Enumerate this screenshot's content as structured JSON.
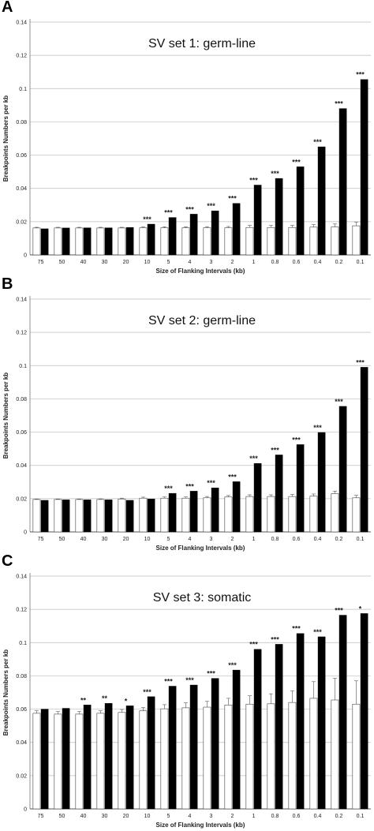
{
  "chart_data": [
    {
      "panel_label": "A",
      "type": "bar",
      "title": "SV set 1: germ-line",
      "xlabel": "Size of Flanking Intervals (kb)",
      "ylabel": "Breakpoints Numbers per kb",
      "ylim": [
        0,
        0.14
      ],
      "yticks": [
        "0",
        "0.02",
        "0.04",
        "0.06",
        "0.08",
        "0.1",
        "0.12",
        "0.14"
      ],
      "grid": true,
      "categories": [
        "75",
        "50",
        "40",
        "30",
        "20",
        "10",
        "5",
        "4",
        "3",
        "2",
        "1",
        "0.8",
        "0.6",
        "0.4",
        "0.2",
        "0.1"
      ],
      "series": [
        {
          "color": "#ffffff",
          "values": [
            0.0162,
            0.0162,
            0.0162,
            0.0162,
            0.0162,
            0.0163,
            0.0163,
            0.0163,
            0.0163,
            0.0163,
            0.0165,
            0.0165,
            0.0165,
            0.0167,
            0.0168,
            0.0175
          ],
          "errors": [
            0.0004,
            0.0004,
            0.0004,
            0.0004,
            0.0004,
            0.0005,
            0.0006,
            0.0006,
            0.0007,
            0.0008,
            0.0012,
            0.0012,
            0.0013,
            0.0015,
            0.0018,
            0.0022
          ]
        },
        {
          "color": "#000000",
          "values": [
            0.0157,
            0.0162,
            0.0163,
            0.0163,
            0.0165,
            0.0185,
            0.0225,
            0.0245,
            0.0265,
            0.031,
            0.042,
            0.046,
            0.053,
            0.065,
            0.088,
            0.1055
          ]
        }
      ],
      "annotations": [
        "",
        "",
        "",
        "",
        "",
        "***",
        "***",
        "***",
        "***",
        "***",
        "***",
        "***",
        "***",
        "***",
        "***",
        "***"
      ]
    },
    {
      "panel_label": "B",
      "type": "bar",
      "title": "SV set 2: germ-line",
      "xlabel": "Size of Flanking Intervals (kb)",
      "ylabel": "Breakpoints Numbers per kb",
      "ylim": [
        0,
        0.14
      ],
      "yticks": [
        "0",
        "0.02",
        "0.04",
        "0.06",
        "0.08",
        "0.1",
        "0.12",
        "0.14"
      ],
      "grid": true,
      "categories": [
        "75",
        "50",
        "40",
        "30",
        "20",
        "10",
        "5",
        "4",
        "3",
        "2",
        "1",
        "0.8",
        "0.6",
        "0.4",
        "0.2",
        "0.1"
      ],
      "series": [
        {
          "color": "#ffffff",
          "values": [
            0.0195,
            0.0195,
            0.0195,
            0.0195,
            0.0198,
            0.0203,
            0.0203,
            0.0203,
            0.0205,
            0.021,
            0.0213,
            0.0213,
            0.0213,
            0.0215,
            0.023,
            0.0205
          ],
          "errors": [
            0.0003,
            0.0003,
            0.0003,
            0.0004,
            0.0005,
            0.0006,
            0.0007,
            0.0007,
            0.0008,
            0.0009,
            0.001,
            0.001,
            0.0012,
            0.0013,
            0.0015,
            0.0015
          ]
        },
        {
          "color": "#000000",
          "values": [
            0.019,
            0.0193,
            0.0193,
            0.0193,
            0.019,
            0.0198,
            0.0232,
            0.0245,
            0.0265,
            0.0302,
            0.0412,
            0.0463,
            0.0525,
            0.0598,
            0.0755,
            0.099
          ]
        }
      ],
      "annotations": [
        "",
        "",
        "",
        "",
        "",
        "",
        "***",
        "***",
        "***",
        "***",
        "***",
        "***",
        "***",
        "***",
        "***",
        "***"
      ]
    },
    {
      "panel_label": "C",
      "type": "bar",
      "title": "SV set 3: somatic",
      "xlabel": "Size of Flanking Intervals (kb)",
      "ylabel": "Breakpoints Numbers per kb",
      "ylim": [
        0,
        0.14
      ],
      "yticks": [
        "0",
        "0.02",
        "0.04",
        "0.06",
        "0.08",
        "0.1",
        "0.12",
        "0.14"
      ],
      "grid": true,
      "categories": [
        "75",
        "50",
        "40",
        "30",
        "20",
        "10",
        "5",
        "4",
        "3",
        "2",
        "1",
        "0.8",
        "0.6",
        "0.4",
        "0.2",
        "0.1"
      ],
      "series": [
        {
          "color": "#ffffff",
          "values": [
            0.0575,
            0.057,
            0.057,
            0.0575,
            0.058,
            0.059,
            0.0602,
            0.0608,
            0.0612,
            0.0625,
            0.063,
            0.0632,
            0.064,
            0.0665,
            0.0655,
            0.063
          ],
          "errors": [
            0.0015,
            0.0015,
            0.0015,
            0.0015,
            0.0018,
            0.002,
            0.0025,
            0.003,
            0.0035,
            0.004,
            0.005,
            0.006,
            0.007,
            0.01,
            0.013,
            0.014
          ]
        },
        {
          "color": "#000000",
          "values": [
            0.06,
            0.0605,
            0.0625,
            0.0635,
            0.062,
            0.0675,
            0.0738,
            0.0745,
            0.0785,
            0.0835,
            0.096,
            0.099,
            0.1055,
            0.1035,
            0.1165,
            0.1175
          ]
        }
      ],
      "annotations": [
        "",
        "",
        "**",
        "**",
        "*",
        "***",
        "***",
        "***",
        "***",
        "***",
        "***",
        "***",
        "***",
        "***",
        "***",
        "*"
      ]
    }
  ]
}
